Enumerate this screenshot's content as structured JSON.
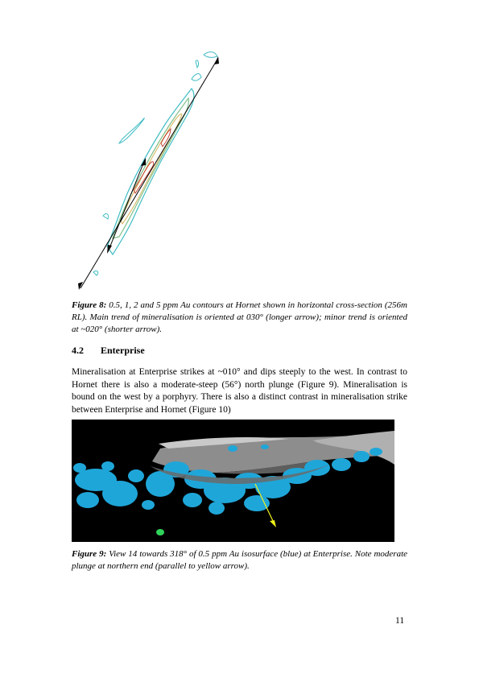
{
  "figure8": {
    "caption_label": "Figure 8:",
    "caption_text": "0.5, 1, 2 and 5 ppm Au contours at Hornet shown in horizontal cross-section (256m RL).  Main trend of mineralisation is oriented at 030° (longer arrow); minor trend is oriented at ~020° (shorter arrow).",
    "colors": {
      "contour_05": "#3fbcc4",
      "contour_1": "#7fc08a",
      "contour_2": "#d4b25a",
      "contour_5": "#c23b2b",
      "arrow": "#000000"
    }
  },
  "section": {
    "number": "4.2",
    "title": "Enterprise"
  },
  "paragraph": "Mineralisation at Enterprise strikes at ~010° and dips steeply to the west.  In contrast to Hornet there is also a moderate-steep (56°) north plunge (Figure 9).  Mineralisation is bound on the west by a porphyry. There is also a distinct contrast in mineralisation strike between Enterprise and Hornet (Figure 10)",
  "figure9": {
    "caption_label": "Figure 9:",
    "caption_text": "View 14 towards 318° of 0.5 ppm Au isosurface (blue) at Enterprise.  Note moderate plunge at northern end (parallel to yellow arrow).",
    "colors": {
      "isosurface": "#1fa6d9",
      "porphyry": "#9a9a9a",
      "arrow": "#f2f21a",
      "background": "#000000"
    }
  },
  "page_number": "11"
}
